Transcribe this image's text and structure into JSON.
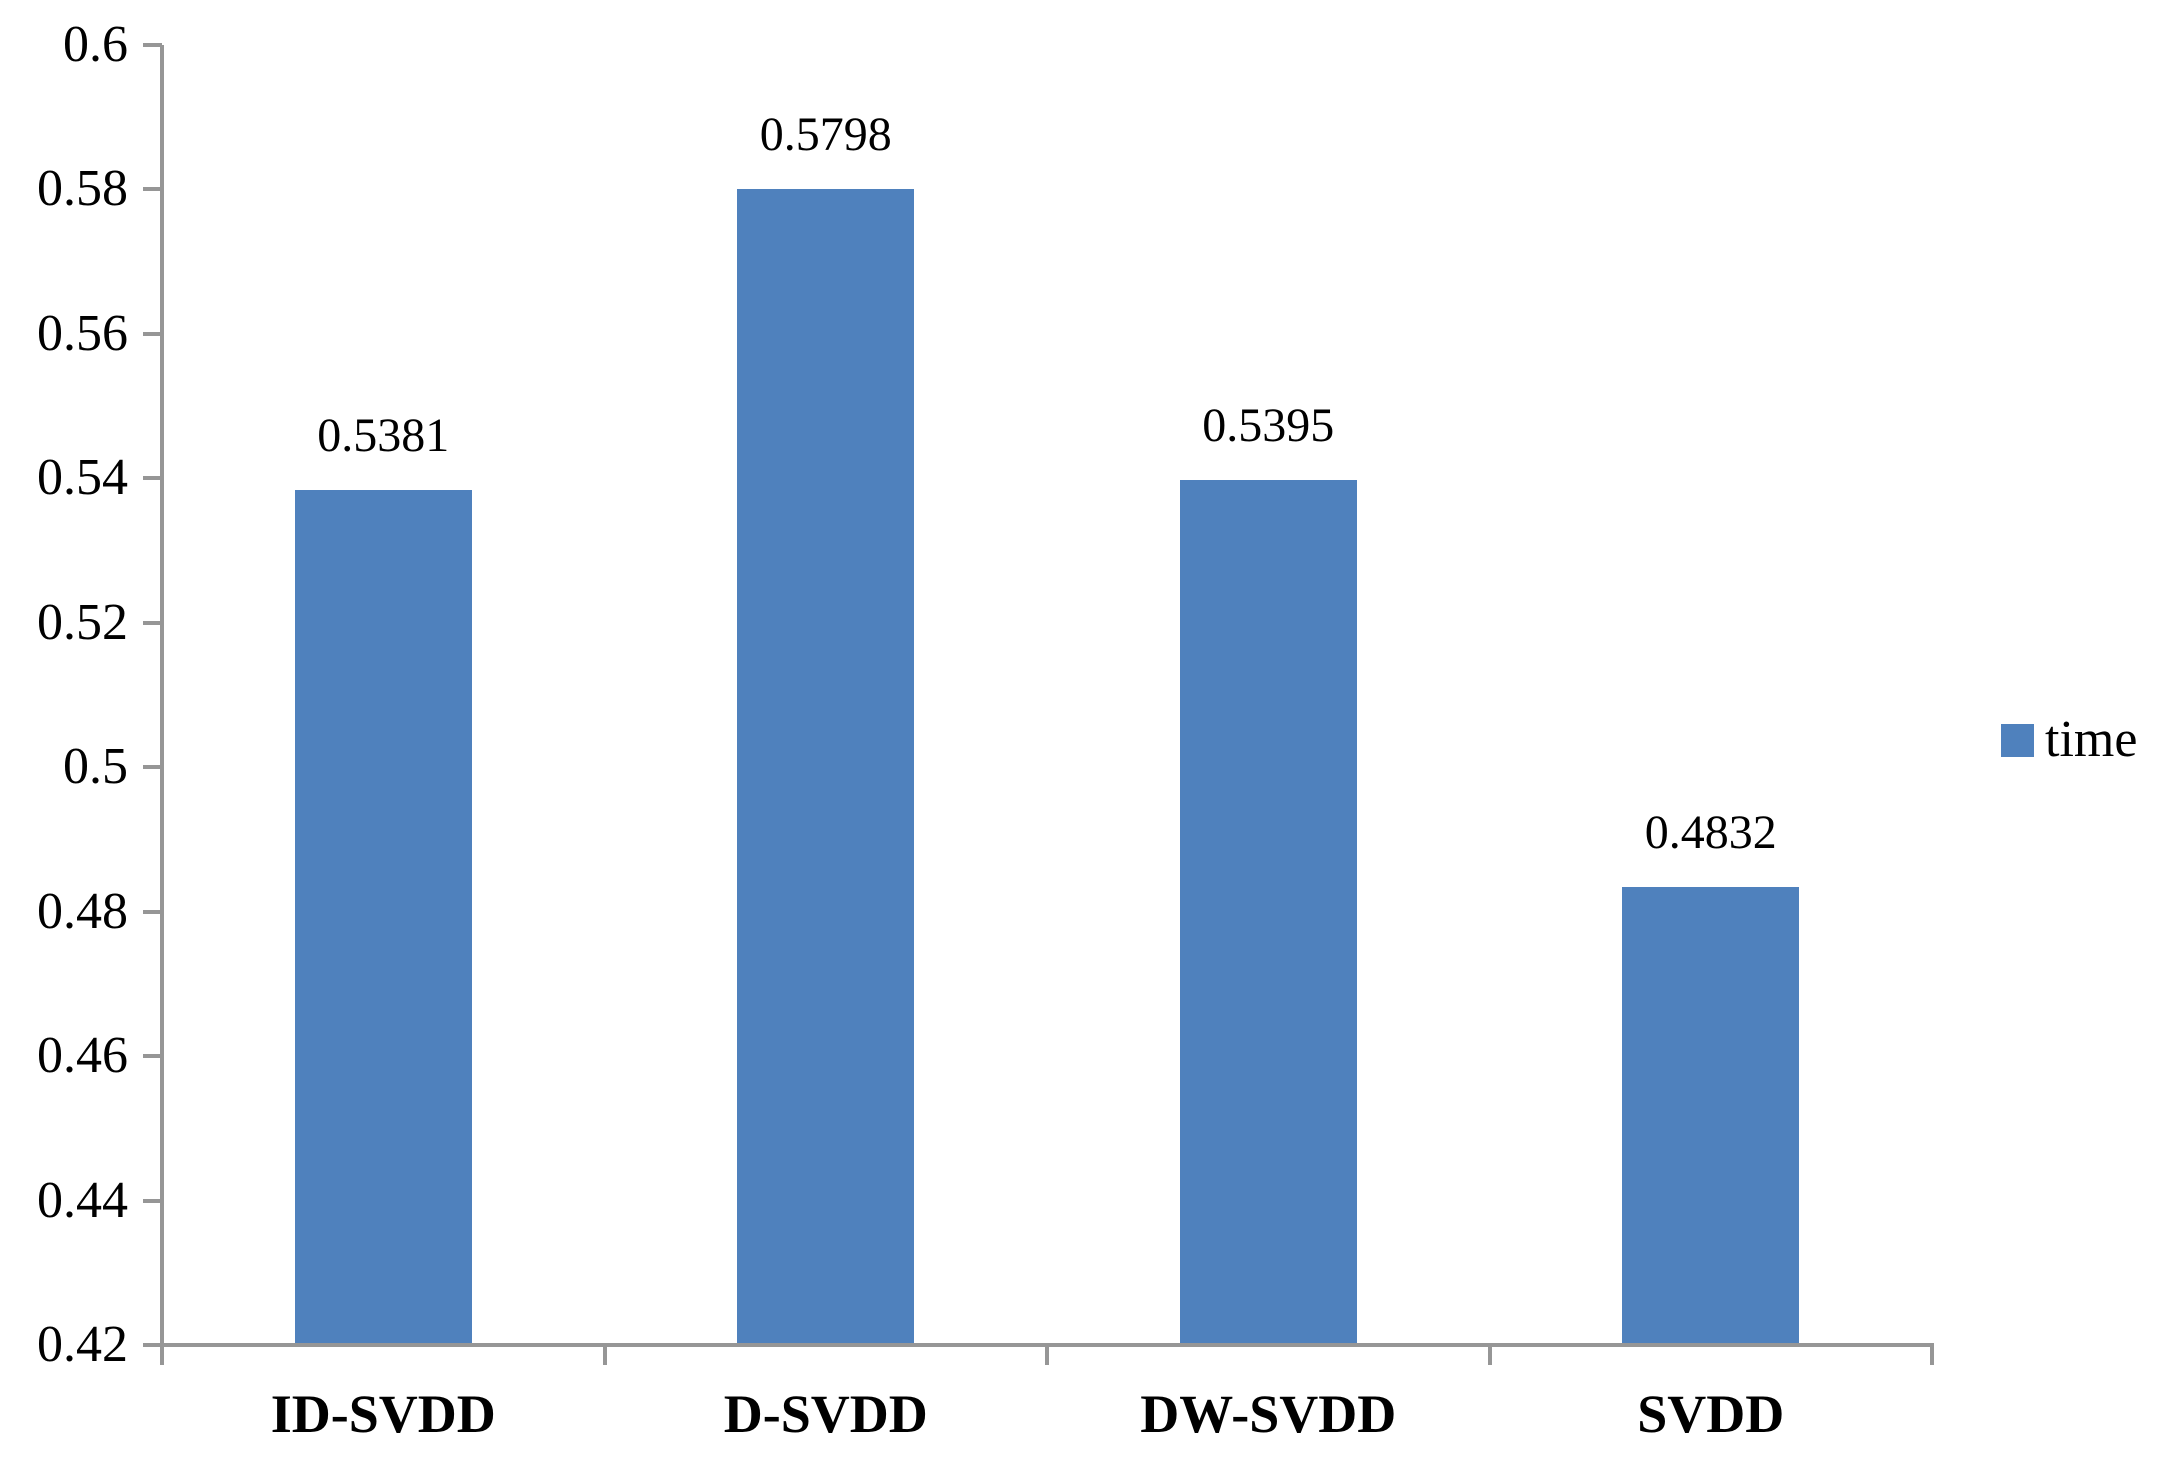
{
  "chart_data": {
    "type": "bar",
    "title": "",
    "categories": [
      "ID-SVDD",
      "D-SVDD",
      "DW-SVDD",
      "SVDD"
    ],
    "values": [
      0.5381,
      0.5798,
      0.5395,
      0.4832
    ],
    "value_labels": [
      "0.5381",
      "0.5798",
      "0.5395",
      "0.4832"
    ],
    "series": [
      {
        "name": "time",
        "values": [
          0.5381,
          0.5798,
          0.5395,
          0.4832
        ]
      }
    ],
    "xlabel": "",
    "ylabel": "",
    "ylim": [
      0.42,
      0.6
    ],
    "ytick_step": 0.02,
    "yticks": [
      "0.42",
      "0.44",
      "0.46",
      "0.48",
      "0.5",
      "0.52",
      "0.54",
      "0.56",
      "0.58",
      "0.6"
    ],
    "grid": false,
    "legend_position": "right",
    "colors": {
      "bar": "#4F81BD",
      "axis": "#969696",
      "text": "#000000",
      "background": "#FFFFFF"
    },
    "legend": {
      "label": "time",
      "swatch_color": "#4F81BD"
    }
  }
}
